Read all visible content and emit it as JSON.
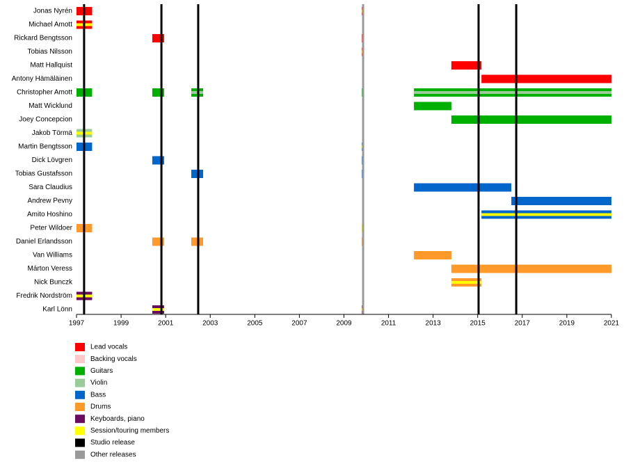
{
  "chart_data": {
    "type": "timeline",
    "xlim": [
      1997,
      2021
    ],
    "xticks": [
      1997,
      1999,
      2001,
      2003,
      2005,
      2007,
      2009,
      2011,
      2013,
      2015,
      2017,
      2019,
      2021
    ],
    "members": [
      {
        "name": "Jonas Nyrén",
        "bars": [
          {
            "start": 1997,
            "end": 1997.7,
            "color": "#ff0000"
          },
          {
            "start": 2009.8,
            "end": 2009.9,
            "color": "#ff0000",
            "stripe": "#ffff00"
          }
        ]
      },
      {
        "name": "Michael Amott",
        "bars": [
          {
            "start": 1997,
            "end": 1997.7,
            "color": "#ff0000",
            "stripe": "#ffff00"
          }
        ]
      },
      {
        "name": "Rickard Bengtsson",
        "bars": [
          {
            "start": 2000.4,
            "end": 2000.93,
            "color": "#ff0000"
          },
          {
            "start": 2009.8,
            "end": 2009.9,
            "color": "#ff0000"
          }
        ]
      },
      {
        "name": "Tobias Nilsson",
        "bars": [
          {
            "start": 2009.8,
            "end": 2009.9,
            "color": "#ff0000",
            "stripe": "#ffff00"
          }
        ]
      },
      {
        "name": "Matt Hallquist",
        "bars": [
          {
            "start": 2013.82,
            "end": 2015.17,
            "color": "#ff0000"
          }
        ]
      },
      {
        "name": "Antony Hämäläinen",
        "bars": [
          {
            "start": 2015.17,
            "end": 2021,
            "color": "#ff0000"
          }
        ]
      },
      {
        "name": "Christopher Amott",
        "bars": [
          {
            "start": 1997,
            "end": 1997.7,
            "color": "#00b000"
          },
          {
            "start": 2000.4,
            "end": 2000.93,
            "color": "#00b000"
          },
          {
            "start": 2002.15,
            "end": 2002.68,
            "color": "#00b000",
            "stripe": "#99cc99"
          },
          {
            "start": 2009.8,
            "end": 2009.9,
            "color": "#00b000"
          },
          {
            "start": 2012.14,
            "end": 2021,
            "color": "#00b000",
            "stripe": "#99cc99"
          }
        ]
      },
      {
        "name": "Matt Wicklund",
        "bars": [
          {
            "start": 2012.14,
            "end": 2013.82,
            "color": "#00b000"
          }
        ]
      },
      {
        "name": "Joey Concepcion",
        "bars": [
          {
            "start": 2013.82,
            "end": 2021,
            "color": "#00b000"
          }
        ]
      },
      {
        "name": "Jakob Törmä",
        "bars": [
          {
            "start": 1997,
            "end": 1997.7,
            "color": "#99cc99",
            "stripe": "#ffff00"
          }
        ]
      },
      {
        "name": "Martin Bengtsson",
        "bars": [
          {
            "start": 1997,
            "end": 1997.7,
            "color": "#0066cc"
          },
          {
            "start": 2009.8,
            "end": 2009.9,
            "color": "#0066cc",
            "stripe": "#ffff00"
          }
        ]
      },
      {
        "name": "Dick Lövgren",
        "bars": [
          {
            "start": 2000.4,
            "end": 2000.93,
            "color": "#0066cc"
          },
          {
            "start": 2009.8,
            "end": 2009.9,
            "color": "#0066cc"
          }
        ]
      },
      {
        "name": "Tobias Gustafsson",
        "bars": [
          {
            "start": 2002.15,
            "end": 2002.68,
            "color": "#0066cc"
          },
          {
            "start": 2009.8,
            "end": 2009.9,
            "color": "#0066cc"
          }
        ]
      },
      {
        "name": "Sara Claudius",
        "bars": [
          {
            "start": 2012.14,
            "end": 2016.51,
            "color": "#0066cc"
          }
        ]
      },
      {
        "name": "Andrew Pevny",
        "bars": [
          {
            "start": 2016.51,
            "end": 2021,
            "color": "#0066cc"
          }
        ]
      },
      {
        "name": "Amito Hoshino",
        "bars": [
          {
            "start": 2015.17,
            "end": 2021,
            "color": "#0066cc",
            "stripe": "#ffff00"
          }
        ]
      },
      {
        "name": "Peter Wildoer",
        "bars": [
          {
            "start": 1997,
            "end": 1997.7,
            "color": "#ff9a2a"
          },
          {
            "start": 2009.8,
            "end": 2009.9,
            "color": "#ffff00"
          }
        ]
      },
      {
        "name": "Daniel Erlandsson",
        "bars": [
          {
            "start": 2000.4,
            "end": 2000.93,
            "color": "#ff9a2a"
          },
          {
            "start": 2002.15,
            "end": 2002.68,
            "color": "#ff9a2a"
          },
          {
            "start": 2009.8,
            "end": 2009.9,
            "color": "#ff9a2a"
          }
        ]
      },
      {
        "name": "Van Williams",
        "bars": [
          {
            "start": 2012.14,
            "end": 2013.82,
            "color": "#ff9a2a"
          }
        ]
      },
      {
        "name": "Márton Veress",
        "bars": [
          {
            "start": 2013.82,
            "end": 2021,
            "color": "#ff9a2a"
          }
        ]
      },
      {
        "name": "Nick Bunczk",
        "bars": [
          {
            "start": 2013.82,
            "end": 2015.17,
            "color": "#ff9a2a",
            "stripe": "#ffff00"
          }
        ]
      },
      {
        "name": "Fredrik Nordström",
        "bars": [
          {
            "start": 1997,
            "end": 1997.7,
            "color": "#6a0a60",
            "stripe": "#ffff00"
          }
        ]
      },
      {
        "name": "Karl Lönn",
        "bars": [
          {
            "start": 2000.4,
            "end": 2000.93,
            "color": "#6a0a60",
            "stripe": "#ffff00"
          },
          {
            "start": 2009.8,
            "end": 2009.9,
            "color": "#6a0a60",
            "stripe": "#ffff00"
          }
        ]
      }
    ],
    "studio_releases": [
      1997.34,
      2000.81,
      2002.46,
      2015.04,
      2016.73
    ],
    "studio_release_color": "#000000",
    "other_releases": [
      2009.86
    ],
    "other_release_color": "#999999",
    "legend": [
      {
        "label": "Lead vocals",
        "color": "#ff0000"
      },
      {
        "label": "Backing vocals",
        "color": "#ffc8c8"
      },
      {
        "label": "Guitars",
        "color": "#00b000"
      },
      {
        "label": "Violin",
        "color": "#99cc99"
      },
      {
        "label": "Bass",
        "color": "#0066cc"
      },
      {
        "label": "Drums",
        "color": "#ff9a2a"
      },
      {
        "label": "Keyboards, piano",
        "color": "#6a0a60"
      },
      {
        "label": "Session/touring members",
        "color": "#ffff00"
      },
      {
        "label": "Studio release",
        "color": "#000000"
      },
      {
        "label": "Other releases",
        "color": "#999999"
      }
    ]
  }
}
